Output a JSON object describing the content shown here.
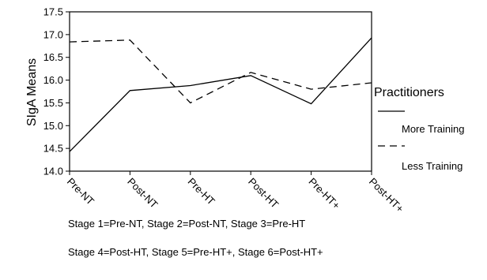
{
  "chart_data": {
    "type": "line",
    "title": "",
    "xlabel": "",
    "ylabel": "SIgA Means",
    "categories": [
      "Pre-NT",
      "Post-NT",
      "Pre-HT",
      "Post-HT",
      "Pre-HT+",
      "Post-HT+"
    ],
    "ylim": [
      14.0,
      17.5
    ],
    "yticks": [
      "14.0",
      "14.5",
      "15.0",
      "15.5",
      "16.0",
      "16.5",
      "17.0",
      "17.5"
    ],
    "grid": false,
    "legend_title": "Practitioners",
    "legend_position": "right",
    "series": [
      {
        "name": "More Training",
        "style": "solid",
        "color": "#000000",
        "values": [
          14.43,
          15.77,
          15.88,
          16.1,
          15.48,
          16.93
        ]
      },
      {
        "name": "Less Training",
        "style": "dashed",
        "color": "#000000",
        "values": [
          16.84,
          16.88,
          15.5,
          16.17,
          15.8,
          15.94
        ]
      }
    ],
    "notes": [
      "Stage 1=Pre-NT, Stage 2=Post-NT, Stage 3=Pre-HT",
      "Stage 4=Post-HT, Stage 5=Pre-HT+, Stage 6=Post-HT+"
    ]
  }
}
